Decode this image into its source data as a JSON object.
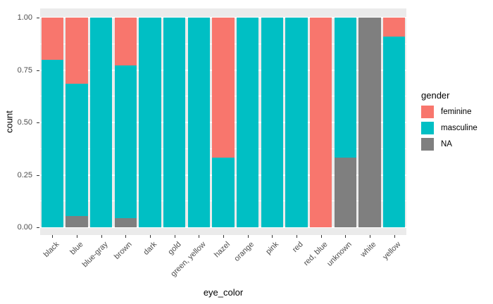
{
  "chart_data": {
    "type": "bar",
    "subtype": "stacked-fill-proportion",
    "title": "",
    "xlabel": "eye_color",
    "ylabel": "count",
    "ylim": [
      0,
      1
    ],
    "grid": true,
    "y_ticks": [
      0,
      0.25,
      0.5,
      0.75,
      1.0
    ],
    "y_tick_labels": [
      "0.00",
      "0.25",
      "0.50",
      "0.75",
      "1.00"
    ],
    "y_minor_ticks": [
      0.125,
      0.375,
      0.625,
      0.875
    ],
    "categories": [
      "black",
      "blue",
      "blue-gray",
      "brown",
      "dark",
      "gold",
      "green, yellow",
      "hazel",
      "orange",
      "pink",
      "red",
      "red, blue",
      "unknown",
      "white",
      "yellow"
    ],
    "series": [
      {
        "name": "feminine",
        "color": "#F8766D",
        "values": [
          0.2,
          0.316,
          0,
          0.227,
          0,
          0,
          0,
          0.667,
          0,
          0,
          0,
          1.0,
          0,
          0,
          0.091
        ]
      },
      {
        "name": "masculine",
        "color": "#00BFC4",
        "values": [
          0.8,
          0.632,
          1.0,
          0.727,
          1.0,
          1.0,
          1.0,
          0.333,
          1.0,
          1.0,
          1.0,
          0,
          0.667,
          0,
          0.909
        ]
      },
      {
        "name": "NA",
        "color": "#7F7F7F",
        "values": [
          0,
          0.053,
          0,
          0.045,
          0,
          0,
          0,
          0,
          0,
          0,
          0,
          0,
          0.333,
          1.0,
          0
        ]
      }
    ],
    "stack_order_bottom_to_top": [
      "NA",
      "masculine",
      "feminine"
    ],
    "legend": {
      "title": "gender",
      "position": "right"
    },
    "colors": {
      "panel_background": "#EBEBEB",
      "gridline": "#FFFFFF",
      "axis_text": "#4d4d4d",
      "tick_mark": "#333333",
      "plot_background": "#FFFFFF"
    }
  }
}
